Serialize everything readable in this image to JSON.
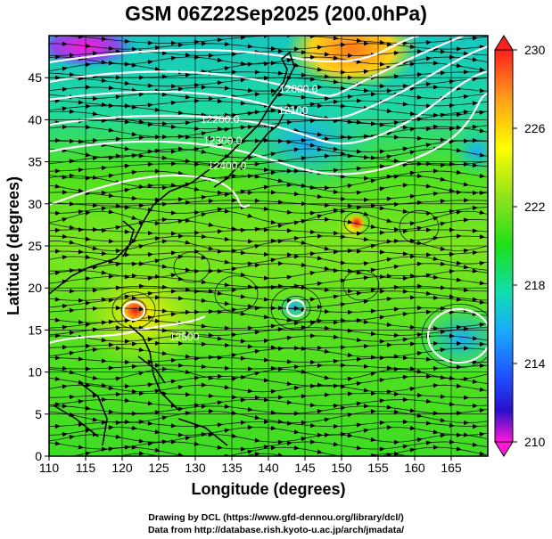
{
  "title": "GSM 06Z22Sep2025 (200.0hPa)",
  "xaxis": {
    "label": "Longitude (degrees)",
    "ticks": [
      "110",
      "115",
      "120",
      "125",
      "130",
      "135",
      "140",
      "145",
      "150",
      "155",
      "160",
      "165"
    ]
  },
  "yaxis": {
    "label": "Latitude (degrees)",
    "ticks": [
      "0",
      "5",
      "10",
      "15",
      "20",
      "25",
      "30",
      "35",
      "40",
      "45"
    ]
  },
  "colorbar": {
    "labels": [
      "230",
      "226",
      "222",
      "218",
      "214",
      "210"
    ],
    "colors": [
      "#ff1f1f",
      "#ff9b1a",
      "#ffff00",
      "#8de21a",
      "#1de01a",
      "#11ddb0",
      "#1aa9ff",
      "#1f4cff",
      "#2a0fc8",
      "#ff18d8"
    ]
  },
  "contour_labels": [
    "12000.0",
    "12100",
    "12200.0",
    "12300.0",
    "12400.0",
    "12500"
  ],
  "credits": [
    "Drawing by DCL (https://www.gfd-dennou.org/library/dcl/)",
    "Data from http://database.rish.kyoto-u.ac.jp/arch/jmadata/"
  ]
}
